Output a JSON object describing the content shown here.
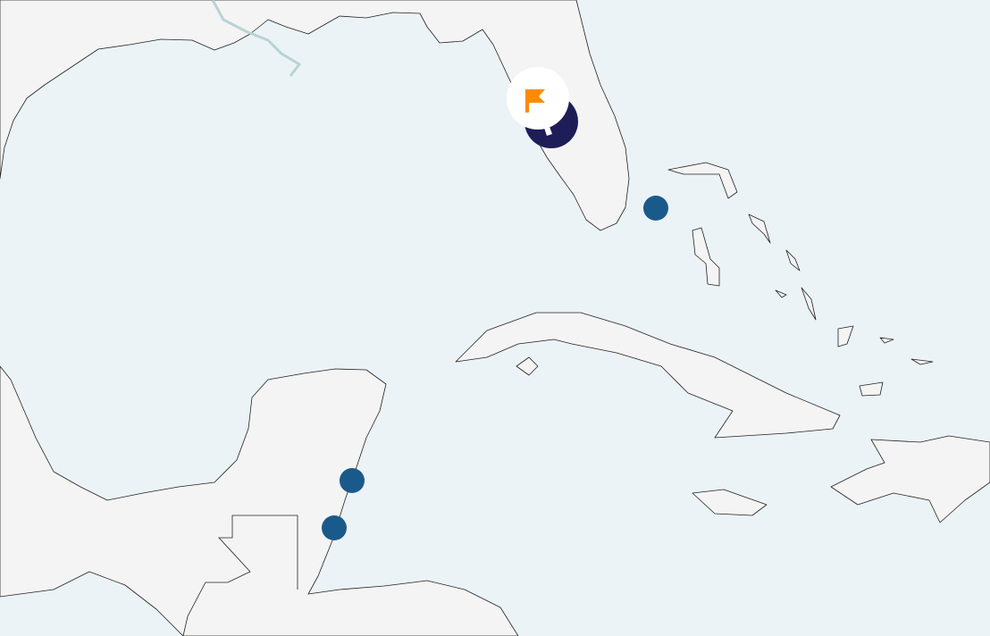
{
  "map": {
    "colors": {
      "water": "#ecf3f7",
      "land": "#f4f4f4",
      "coastline": "#222222",
      "river": "#b9d3d3",
      "marker": "#1a5a8a",
      "cluster": "#1f1d57",
      "flag": "#ff8c00",
      "flag_badge": "#ffffff"
    },
    "markers": [
      {
        "id": "bahamas-marker",
        "icon": "circle"
      },
      {
        "id": "belize-north-marker",
        "icon": "circle"
      },
      {
        "id": "belize-south-marker",
        "icon": "circle"
      }
    ],
    "selected_marker": {
      "icon": "flag-icon",
      "cluster": "navy circle"
    }
  }
}
